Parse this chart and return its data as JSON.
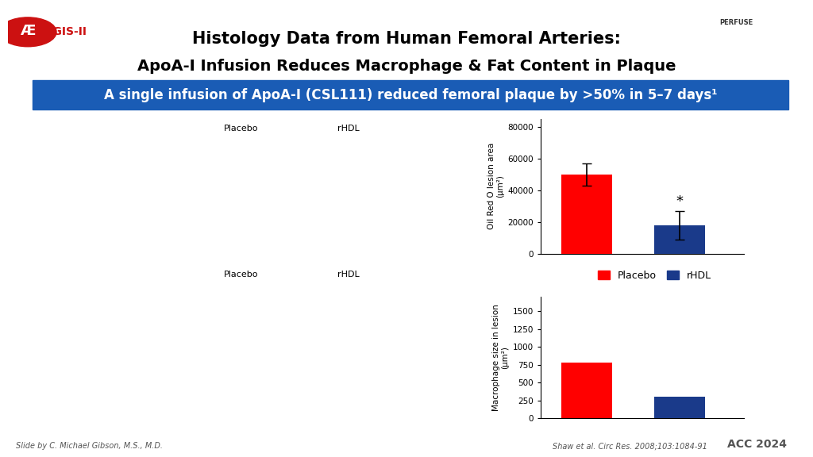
{
  "title_line1": "Histology Data from Human Femoral Arteries:",
  "title_line2": "ApoA-I Infusion Reduces Macrophage & Fat Content in Plaque",
  "banner_text": "A single infusion of ApoA-I (CSL111) reduced femoral plaque by >50% in 5–7 days¹",
  "chart1_ylabel_line1": "Oil Red O lesion area",
  "chart1_ylabel_line2": "(μm²)",
  "chart1_placebo_val": 50000,
  "chart1_placebo_err": 7000,
  "chart1_rhdl_val": 18000,
  "chart1_rhdl_err": 9000,
  "chart1_ylim": [
    0,
    85000
  ],
  "chart1_yticks": [
    0,
    20000,
    40000,
    60000,
    80000
  ],
  "chart2_ylabel_line1": "Macrophage size in lesion",
  "chart2_ylabel_line2": "(μm²)",
  "chart2_placebo_val": 775,
  "chart2_rhdl_val": 300,
  "chart2_ylim": [
    0,
    1700
  ],
  "chart2_yticks": [
    0,
    250,
    500,
    750,
    1000,
    1250,
    1500
  ],
  "legend_placebo": "Placebo",
  "legend_rhdl": "rHDL",
  "color_placebo": "#FF0000",
  "color_rhdl": "#1a3a8a",
  "bar_width": 0.55,
  "bottom_left_text": "Slide by C. Michael Gibson, M.S., M.D.",
  "bottom_right_text1": "Shaw et al. Circ Res. 2008;103:1084-91",
  "bottom_right_text2": "ACC 2024",
  "background_color": "#FFFFFF",
  "banner_bg": "#1a5cb5",
  "banner_text_color": "#FFFFFF",
  "title_color": "#000000",
  "label_placebo_top": "Placebo",
  "label_rhdl_top": "rHDL",
  "label_placebo_bot": "Placebo",
  "label_rhdl_bot": "rHDL"
}
